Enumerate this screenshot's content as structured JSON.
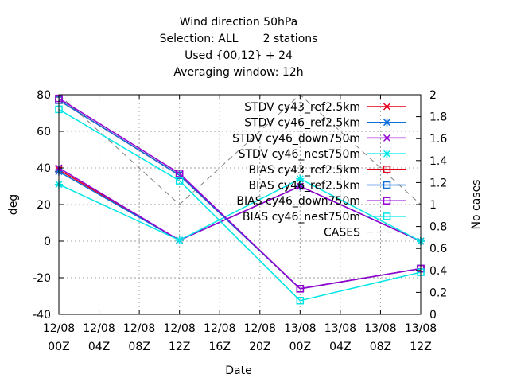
{
  "chart_data": {
    "type": "line",
    "title_lines": [
      "Wind direction 50hPa",
      "Selection: ALL       2 stations",
      "Used {00,12} + 24",
      "Averaging window: 12h"
    ],
    "xlabel": "Date",
    "ylabel": "deg",
    "y2label": "No cases",
    "x_ticks": [
      {
        "line1": "12/08",
        "line2": "00Z"
      },
      {
        "line1": "12/08",
        "line2": "04Z"
      },
      {
        "line1": "12/08",
        "line2": "08Z"
      },
      {
        "line1": "12/08",
        "line2": "12Z"
      },
      {
        "line1": "12/08",
        "line2": "16Z"
      },
      {
        "line1": "12/08",
        "line2": "20Z"
      },
      {
        "line1": "13/08",
        "line2": "00Z"
      },
      {
        "line1": "13/08",
        "line2": "04Z"
      },
      {
        "line1": "13/08",
        "line2": "08Z"
      },
      {
        "line1": "13/08",
        "line2": "12Z"
      }
    ],
    "x_hours": [
      0,
      12,
      24,
      36
    ],
    "xlim_hours": [
      0,
      36
    ],
    "ylim": [
      -40,
      80
    ],
    "y_ticks": [
      "-40",
      "-20",
      "0",
      "20",
      "40",
      "60",
      "80"
    ],
    "y2lim": [
      0,
      2
    ],
    "y2_ticks": [
      "0",
      "0.2",
      "0.4",
      "0.6",
      "0.8",
      "1",
      "1.2",
      "1.4",
      "1.6",
      "1.8",
      "2"
    ],
    "grid": true,
    "legend_position": "top-right",
    "series": [
      {
        "name": "STDV cy43_ref2.5km",
        "color": "#e6001a",
        "marker": "cross",
        "axis": "y1",
        "values": [
          39,
          0.5,
          30,
          0
        ]
      },
      {
        "name": "STDV cy46_ref2.5km",
        "color": "#0a6fd8",
        "marker": "star",
        "axis": "y1",
        "values": [
          38,
          0.5,
          30,
          0
        ]
      },
      {
        "name": "STDV cy46_down750m",
        "color": "#9400d3",
        "marker": "cross",
        "axis": "y1",
        "values": [
          40,
          0.5,
          30,
          0
        ]
      },
      {
        "name": "STDV cy46_nest750m",
        "color": "#00e6e6",
        "marker": "star",
        "axis": "y1",
        "values": [
          31,
          0.5,
          34,
          0
        ]
      },
      {
        "name": "BIAS cy43_ref2.5km",
        "color": "#e6001a",
        "marker": "square",
        "axis": "y1",
        "values": [
          77,
          36,
          -26,
          -15
        ]
      },
      {
        "name": "BIAS cy46_ref2.5km",
        "color": "#0a6fd8",
        "marker": "square",
        "axis": "y1",
        "values": [
          77,
          36,
          -26,
          -15
        ]
      },
      {
        "name": "BIAS cy46_down750m",
        "color": "#9400d3",
        "marker": "square",
        "axis": "y1",
        "values": [
          78,
          37,
          -26,
          -15
        ]
      },
      {
        "name": "BIAS cy46_nest750m",
        "color": "#00e6e6",
        "marker": "square",
        "axis": "y1",
        "values": [
          72,
          33,
          -32.5,
          -17
        ]
      },
      {
        "name": "CASES",
        "color": "#808080",
        "marker": "none",
        "dashed": true,
        "axis": "y2",
        "values": [
          2,
          1,
          2,
          1
        ]
      }
    ]
  }
}
